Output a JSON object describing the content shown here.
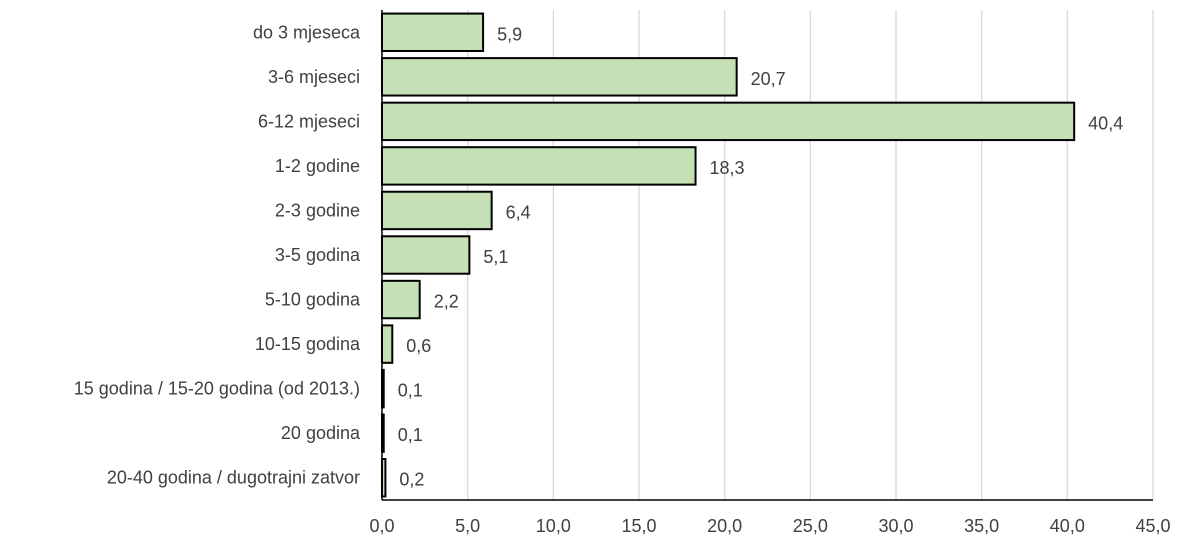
{
  "chart_data": {
    "type": "bar",
    "orientation": "horizontal",
    "categories": [
      "do 3 mjeseca",
      "3-6 mjeseci",
      "6-12 mjeseci",
      "1-2 godine",
      "2-3 godine",
      "3-5 godina",
      "5-10 godina",
      "10-15 godina",
      "15 godina / 15-20 godina (od 2013.)",
      "20 godina",
      "20-40 godina / dugotrajni zatvor"
    ],
    "values": [
      5.9,
      20.7,
      40.4,
      18.3,
      6.4,
      5.1,
      2.2,
      0.6,
      0.1,
      0.1,
      0.2
    ],
    "data_labels": [
      "5,9",
      "20,7",
      "40,4",
      "18,3",
      "6,4",
      "5,1",
      "2,2",
      "0,6",
      "0,1",
      "0,1",
      "0,2"
    ],
    "x_ticks": [
      0,
      5,
      10,
      15,
      20,
      25,
      30,
      35,
      40,
      45
    ],
    "x_tick_labels": [
      "0,0",
      "5,0",
      "10,0",
      "15,0",
      "20,0",
      "25,0",
      "30,0",
      "35,0",
      "40,0",
      "45,0"
    ],
    "xlim": [
      0,
      45
    ],
    "grid": true,
    "legend": "none",
    "bar_color": "#c5e0b4",
    "bar_border_color": "#000000",
    "title": "",
    "xlabel": "",
    "ylabel": ""
  }
}
